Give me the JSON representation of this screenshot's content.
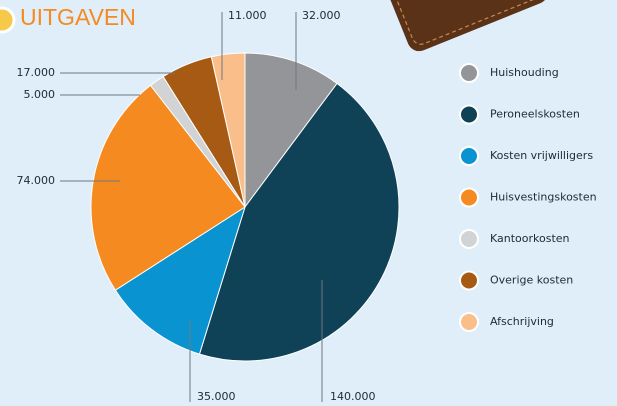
{
  "chart_data": {
    "type": "pie",
    "title": "UITGAVEN",
    "categories": [
      "Huishouding",
      "Peroneelskosten",
      "Kosten vrijwilligers",
      "Huisvestingskosten",
      "Kantoorkosten",
      "Overige kosten",
      "Afschrijving"
    ],
    "values": [
      32000,
      140000,
      35000,
      74000,
      5000,
      17000,
      11000
    ],
    "value_labels": [
      "32.000",
      "140.000",
      "35.000",
      "74.000",
      "5.000",
      "17.000",
      "11.000"
    ],
    "colors": [
      "#939598",
      "#0f4257",
      "#0a93d1",
      "#f58a21",
      "#d1d3d4",
      "#a65a14",
      "#f9be8a"
    ]
  }
}
